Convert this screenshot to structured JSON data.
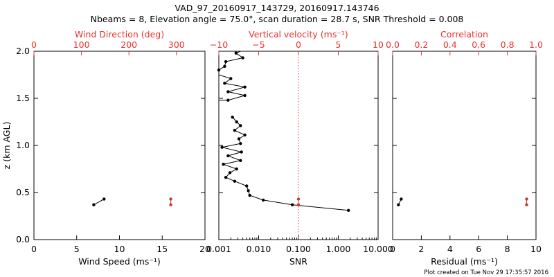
{
  "title": {
    "line1": "VAD_97_20160917_143729, 20160917.143746",
    "line2": "Nbeams = 8, Elevation angle = 75.0°, scan duration = 28.7 s, SNR Threshold = 0.008"
  },
  "footer": "Plot created on Tue Nov 29 17:35:57 2016",
  "colors": {
    "axis": "#000000",
    "accent": "#e8322a",
    "series": "#000000",
    "accent_marker": "#c0392b"
  },
  "chart_data": [
    {
      "id": "wind",
      "type": "scatter",
      "ylabel": "z (km AGL)",
      "ylim": [
        0.0,
        2.0
      ],
      "yticks": [
        0.0,
        0.5,
        1.0,
        1.5,
        2.0
      ],
      "ytick_labels": [
        "0.0",
        "0.5",
        "1.0",
        "1.5",
        "2.0"
      ],
      "xlabel": "Wind Speed (ms⁻¹)",
      "xlim": [
        0,
        20
      ],
      "xticks": [
        0,
        5,
        10,
        15,
        20
      ],
      "xtick_labels": [
        "0",
        "5",
        "10",
        "15",
        "20"
      ],
      "top_label": "Wind Direction (deg)",
      "top_xlim": [
        0,
        360
      ],
      "top_ticks": [
        0,
        100,
        200,
        300
      ],
      "top_tick_labels": [
        "0",
        "100",
        "200",
        "300"
      ],
      "series": [
        {
          "name": "",
          "axis": "bottom",
          "color": "#000000",
          "connected": true,
          "points": [
            [
              7.0,
              0.37
            ],
            [
              8.2,
              0.43
            ]
          ]
        },
        {
          "name": "",
          "axis": "top",
          "color": "#c0392b",
          "connected": true,
          "points": [
            [
              288,
              0.37
            ],
            [
              288,
              0.43
            ]
          ]
        }
      ]
    },
    {
      "id": "snr",
      "type": "line",
      "xscale": "log",
      "xlabel": "SNR",
      "xlim": [
        0.001,
        10
      ],
      "xticks": [
        0.001,
        0.01,
        0.1,
        1,
        10
      ],
      "xtick_labels": [
        "0.001",
        "0.010",
        "0.100",
        "1.000",
        "10.000"
      ],
      "top_label": "Vertical velocity (ms⁻¹)",
      "top_xlim": [
        -10,
        10
      ],
      "top_ticks": [
        -10,
        -5,
        0,
        5,
        10
      ],
      "top_tick_labels": [
        "−10",
        "−5",
        "0",
        "5",
        "10"
      ],
      "reference_line": {
        "axis": "top",
        "value": 0
      },
      "series": [
        {
          "name": "",
          "axis": "bottom",
          "color": "#000000",
          "connected": true,
          "points": [
            [
              1.8,
              0.31
            ],
            [
              0.07,
              0.37
            ],
            [
              0.013,
              0.42
            ],
            [
              0.006,
              0.47
            ],
            [
              0.0055,
              0.52
            ],
            [
              0.005,
              0.57
            ],
            [
              0.0025,
              0.62
            ],
            [
              0.0015,
              0.66
            ],
            [
              0.0019,
              0.71
            ],
            [
              0.0028,
              0.75
            ],
            [
              0.0013,
              0.8
            ],
            [
              0.0035,
              0.84
            ],
            [
              0.0017,
              0.89
            ],
            [
              0.0037,
              0.93
            ],
            [
              0.0012,
              0.98
            ],
            [
              0.0035,
              1.02
            ],
            [
              0.0032,
              1.07
            ],
            [
              0.0045,
              1.11
            ],
            [
              0.0025,
              1.16
            ],
            [
              0.0035,
              1.21
            ],
            [
              0.0028,
              1.25
            ],
            [
              0.0022,
              1.3
            ]
          ]
        },
        {
          "name": "",
          "axis": "bottom",
          "color": "#000000",
          "connected": true,
          "points": [
            [
              0.0009,
              1.48
            ],
            [
              0.0017,
              1.48
            ],
            [
              0.0045,
              1.53
            ],
            [
              0.0017,
              1.57
            ],
            [
              0.0045,
              1.62
            ],
            [
              0.0014,
              1.66
            ],
            [
              0.002,
              1.71
            ],
            [
              0.0009,
              1.75
            ],
            [
              0.001,
              1.8
            ],
            [
              0.0014,
              1.84
            ],
            [
              0.0015,
              1.89
            ],
            [
              0.004,
              1.93
            ],
            [
              0.0027,
              1.98
            ],
            [
              0.0035,
              2.02
            ]
          ]
        },
        {
          "name": "",
          "axis": "top",
          "color": "#c0392b",
          "connected": true,
          "points": [
            [
              0,
              0.37
            ],
            [
              0,
              0.43
            ]
          ]
        }
      ]
    },
    {
      "id": "corr",
      "type": "scatter",
      "xlabel": "Residual (ms⁻¹)",
      "xlim": [
        0,
        10
      ],
      "xticks": [
        0,
        2,
        4,
        6,
        8,
        10
      ],
      "xtick_labels": [
        "0",
        "2",
        "4",
        "6",
        "8",
        "10"
      ],
      "top_label": "Correlation",
      "top_xlim": [
        0,
        1
      ],
      "top_ticks": [
        0,
        0.2,
        0.4,
        0.6,
        0.8,
        1.0
      ],
      "top_tick_labels": [
        "0.0",
        "0.2",
        "0.4",
        "0.6",
        "0.8",
        "1.0"
      ],
      "series": [
        {
          "name": "",
          "axis": "bottom",
          "color": "#000000",
          "connected": true,
          "points": [
            [
              0.4,
              0.37
            ],
            [
              0.6,
              0.43
            ]
          ]
        },
        {
          "name": "",
          "axis": "top",
          "color": "#c0392b",
          "connected": true,
          "points": [
            [
              0.935,
              0.37
            ],
            [
              0.935,
              0.43
            ]
          ]
        }
      ]
    }
  ]
}
